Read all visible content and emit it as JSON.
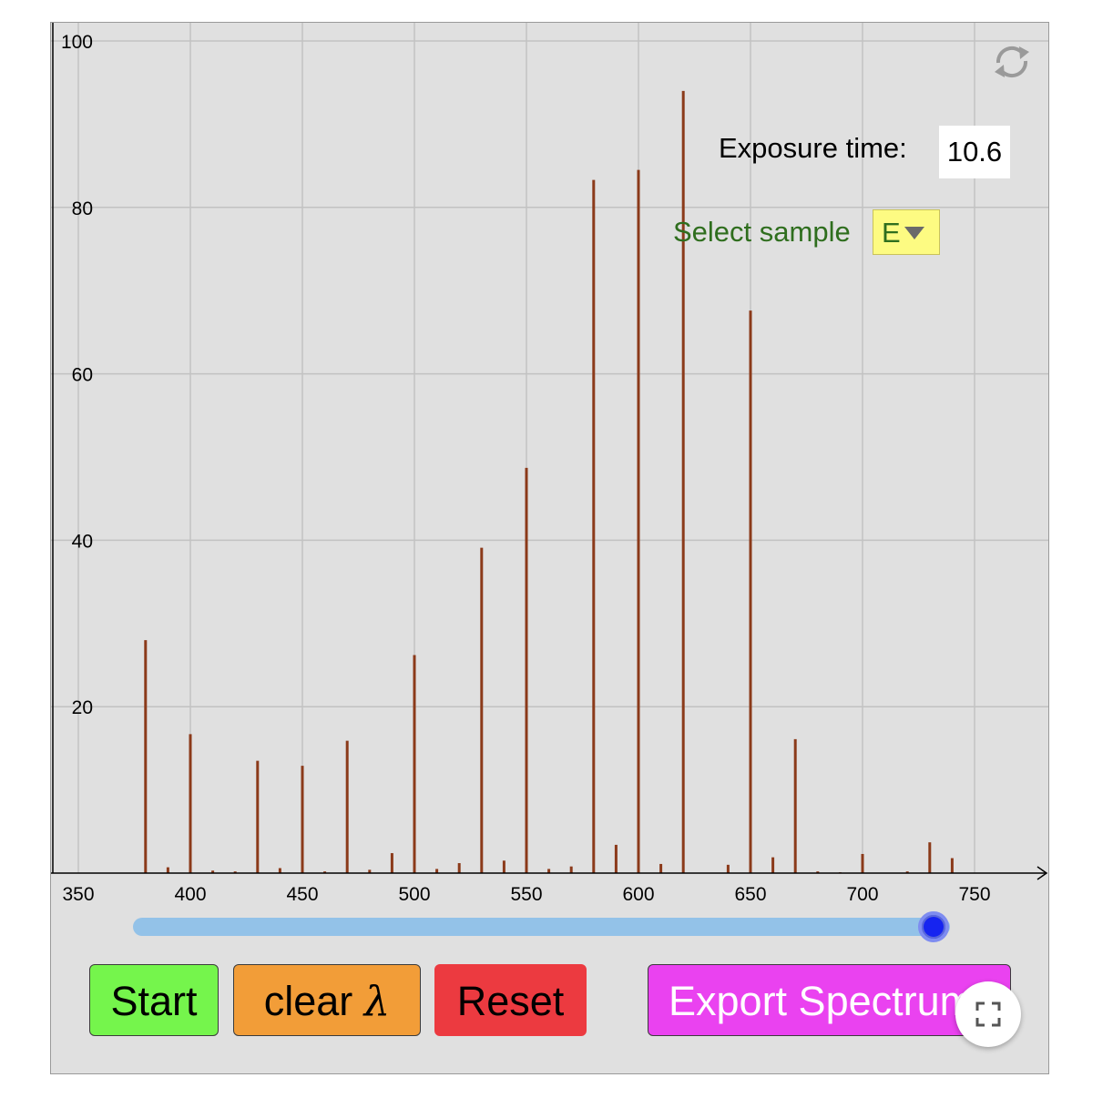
{
  "chart_data": {
    "type": "bar",
    "title": "",
    "xlabel": "",
    "ylabel": "",
    "x_ticks": [
      350,
      400,
      450,
      500,
      550,
      600,
      650,
      700,
      750
    ],
    "y_ticks": [
      20,
      40,
      60,
      80,
      100
    ],
    "xlim": [
      343,
      790
    ],
    "ylim": [
      0,
      101
    ],
    "grid": true,
    "bar_color": "#8b3a1a",
    "x": [
      380,
      390,
      400,
      410,
      420,
      430,
      440,
      450,
      460,
      470,
      480,
      490,
      500,
      510,
      520,
      530,
      540,
      550,
      560,
      570,
      580,
      590,
      600,
      610,
      620,
      640,
      650,
      660,
      670,
      680,
      690,
      700,
      720,
      730,
      740
    ],
    "values": [
      28,
      0.7,
      16.7,
      0.3,
      0.2,
      13.5,
      0.6,
      12.9,
      0.2,
      15.9,
      0.4,
      2.4,
      26.2,
      0.5,
      1.2,
      39.1,
      1.5,
      48.7,
      0.5,
      0.8,
      83.3,
      3.4,
      84.5,
      1.1,
      94,
      1,
      67.6,
      1.9,
      16.1,
      0.2,
      0.1,
      2.3,
      0.2,
      3.7,
      1.8
    ]
  },
  "exposure": {
    "label": "Exposure time:",
    "value": "10.6"
  },
  "sample": {
    "label": "Select sample",
    "selected": "E",
    "label_color": "#2f6e1e",
    "select_color": "#fdfb82"
  },
  "slider": {
    "value_fraction": 0.98,
    "track_color": "#93c2e8",
    "thumb_color": "#1624f0"
  },
  "buttons": {
    "start": {
      "label": "Start",
      "color": "#75f54c"
    },
    "clear": {
      "label": "clear ",
      "symbol": "λ",
      "color": "#f29d38"
    },
    "reset": {
      "label": "Reset",
      "color": "#ec3a40"
    },
    "export": {
      "label": "Export Spectrum",
      "color": "#ea42f0"
    }
  },
  "icons": {
    "refresh": "refresh-icon",
    "fullscreen": "fullscreen-icon"
  }
}
